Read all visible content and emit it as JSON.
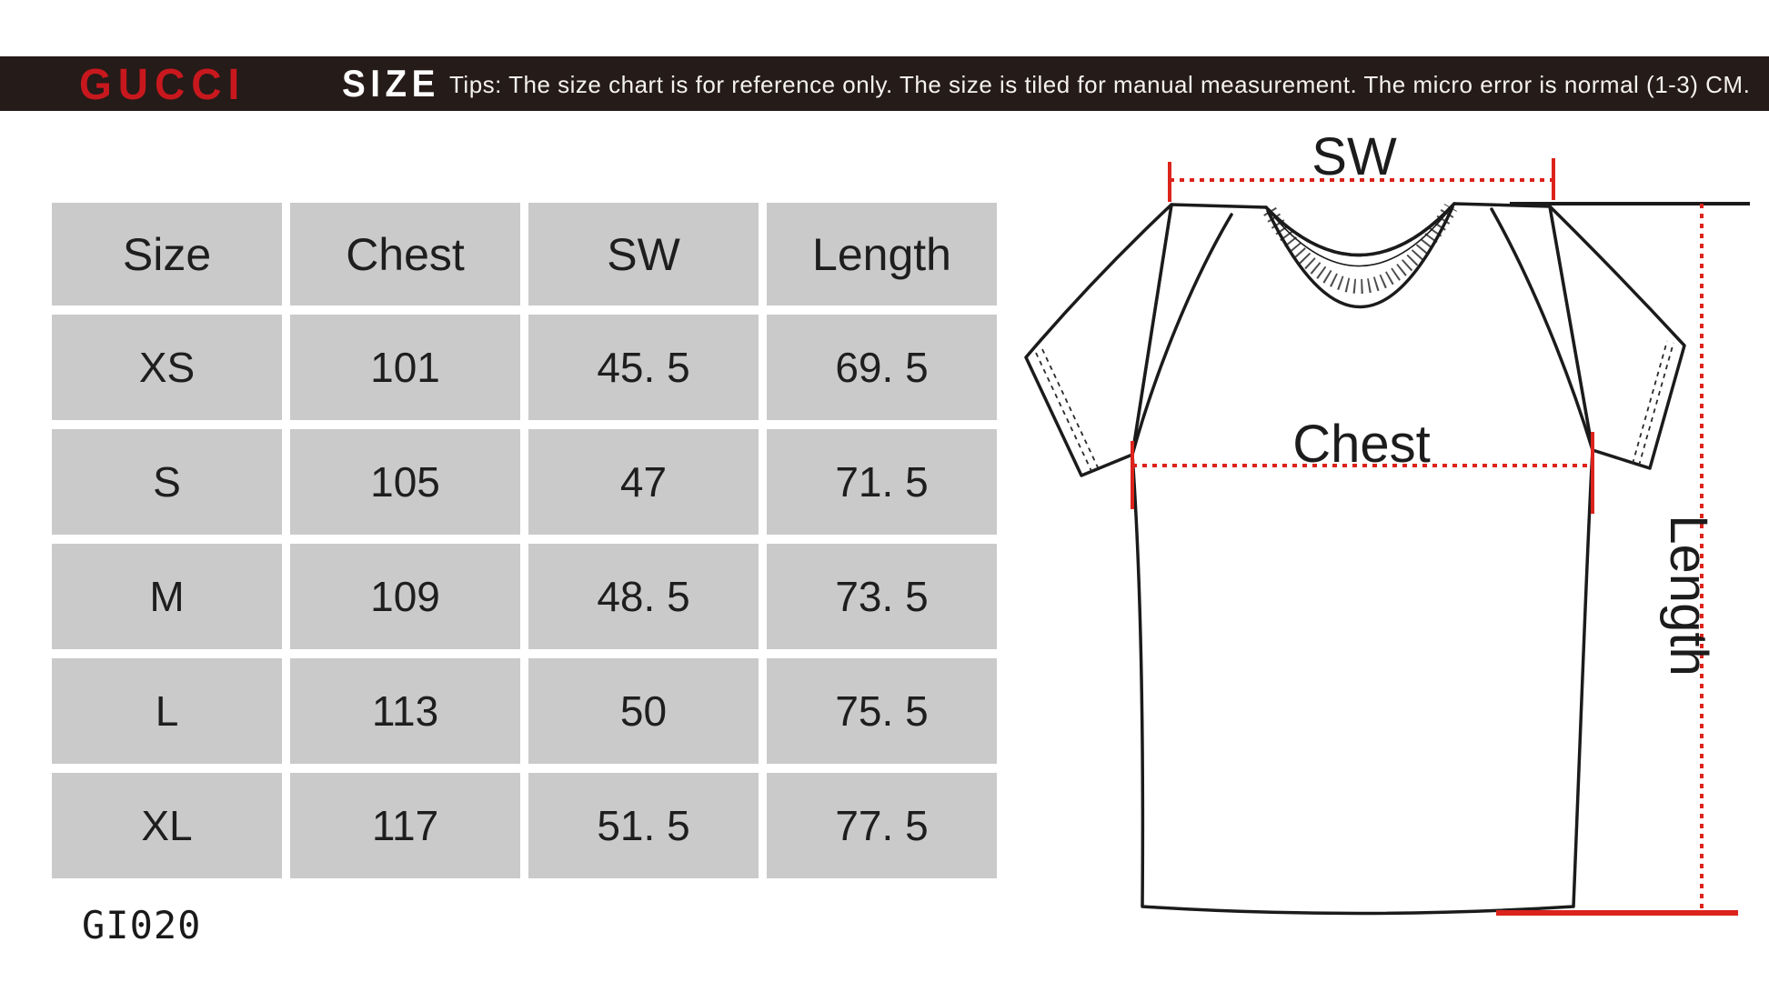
{
  "header": {
    "brand": "GUCCI",
    "size_label": "SIZE",
    "tips": "Tips: The size chart is for reference only. The size is tiled for manual measurement. The micro error is normal (1-3) CM.",
    "bar_color": "#251b18",
    "brand_color": "#c8181e"
  },
  "size_table": {
    "columns": [
      "Size",
      "Chest",
      "SW",
      "Length"
    ],
    "rows": [
      {
        "size": "XS",
        "chest": "101",
        "sw": "45. 5",
        "length": "69. 5"
      },
      {
        "size": "S",
        "chest": "105",
        "sw": "47",
        "length": "71. 5"
      },
      {
        "size": "M",
        "chest": "109",
        "sw": "48. 5",
        "length": "73. 5"
      },
      {
        "size": "L",
        "chest": "113",
        "sw": "50",
        "length": "75. 5"
      },
      {
        "size": "XL",
        "chest": "117",
        "sw": "51. 5",
        "length": "77. 5"
      }
    ],
    "cell_color": "#cacaca"
  },
  "product_code": "GI020",
  "diagram": {
    "shoulder_label": "SW",
    "chest_label": "Chest",
    "length_label": "Length",
    "measure_color": "#dc231c"
  },
  "chart_data": {
    "type": "table",
    "title": "GUCCI size chart (CM)",
    "columns": [
      "Size",
      "Chest",
      "SW",
      "Length"
    ],
    "rows": [
      [
        "XS",
        101,
        45.5,
        69.5
      ],
      [
        "S",
        105,
        47,
        71.5
      ],
      [
        "M",
        109,
        48.5,
        73.5
      ],
      [
        "L",
        113,
        50,
        75.5
      ],
      [
        "XL",
        117,
        51.5,
        77.5
      ]
    ]
  }
}
